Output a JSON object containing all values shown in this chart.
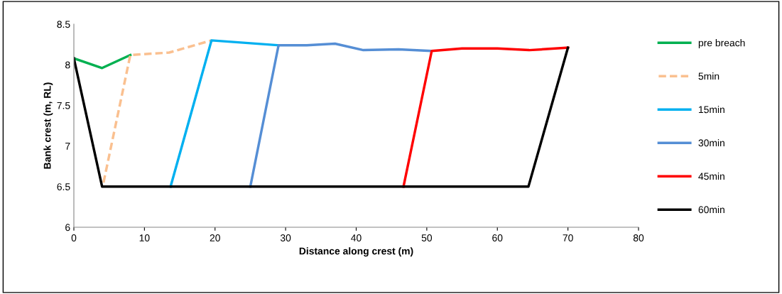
{
  "chart_data": {
    "type": "line",
    "xlabel": "Distance along crest (m)",
    "ylabel": "Bank crest (m, RL)",
    "xlim": [
      0,
      80
    ],
    "xticks": [
      0,
      10,
      20,
      30,
      40,
      50,
      60,
      70,
      80
    ],
    "ylim": [
      6,
      8.5
    ],
    "yticks": [
      6,
      {
        "value": 6.5,
        "label": "6.5"
      },
      7,
      {
        "value": 7.5,
        "label": "7.5"
      },
      8,
      {
        "value": 8.5,
        "label": "8.5"
      }
    ],
    "grid": false,
    "legend": "right",
    "marker": "none",
    "series": [
      {
        "name": "pre breach",
        "color": "#00b050",
        "x": [
          0,
          4,
          8
        ],
        "values": [
          8.08,
          7.96,
          8.12
        ]
      },
      {
        "name": "5min",
        "color": "#fac090",
        "line_style": "dashed",
        "x": [
          4.2,
          8,
          13.5,
          19.5
        ],
        "values": [
          6.55,
          8.12,
          8.15,
          8.3
        ]
      },
      {
        "name": "15min",
        "color": "#00b0f0",
        "x": [
          13.7,
          19.5,
          29
        ],
        "values": [
          6.5,
          8.3,
          8.24
        ]
      },
      {
        "name": "30min",
        "color": "#558ed5",
        "x": [
          25,
          29,
          33,
          37,
          41,
          46,
          50.5
        ],
        "values": [
          6.5,
          8.24,
          8.24,
          8.26,
          8.18,
          8.19,
          8.17
        ]
      },
      {
        "name": "45min",
        "color": "#ff0000",
        "x": [
          46.7,
          50.7,
          55,
          60,
          64.5,
          70
        ],
        "values": [
          6.5,
          8.17,
          8.2,
          8.2,
          8.18,
          8.21
        ]
      },
      {
        "name": "60min",
        "color": "#000000",
        "x": [
          0,
          4,
          64.4,
          70
        ],
        "values": [
          8.08,
          6.5,
          6.5,
          8.21
        ]
      }
    ]
  }
}
